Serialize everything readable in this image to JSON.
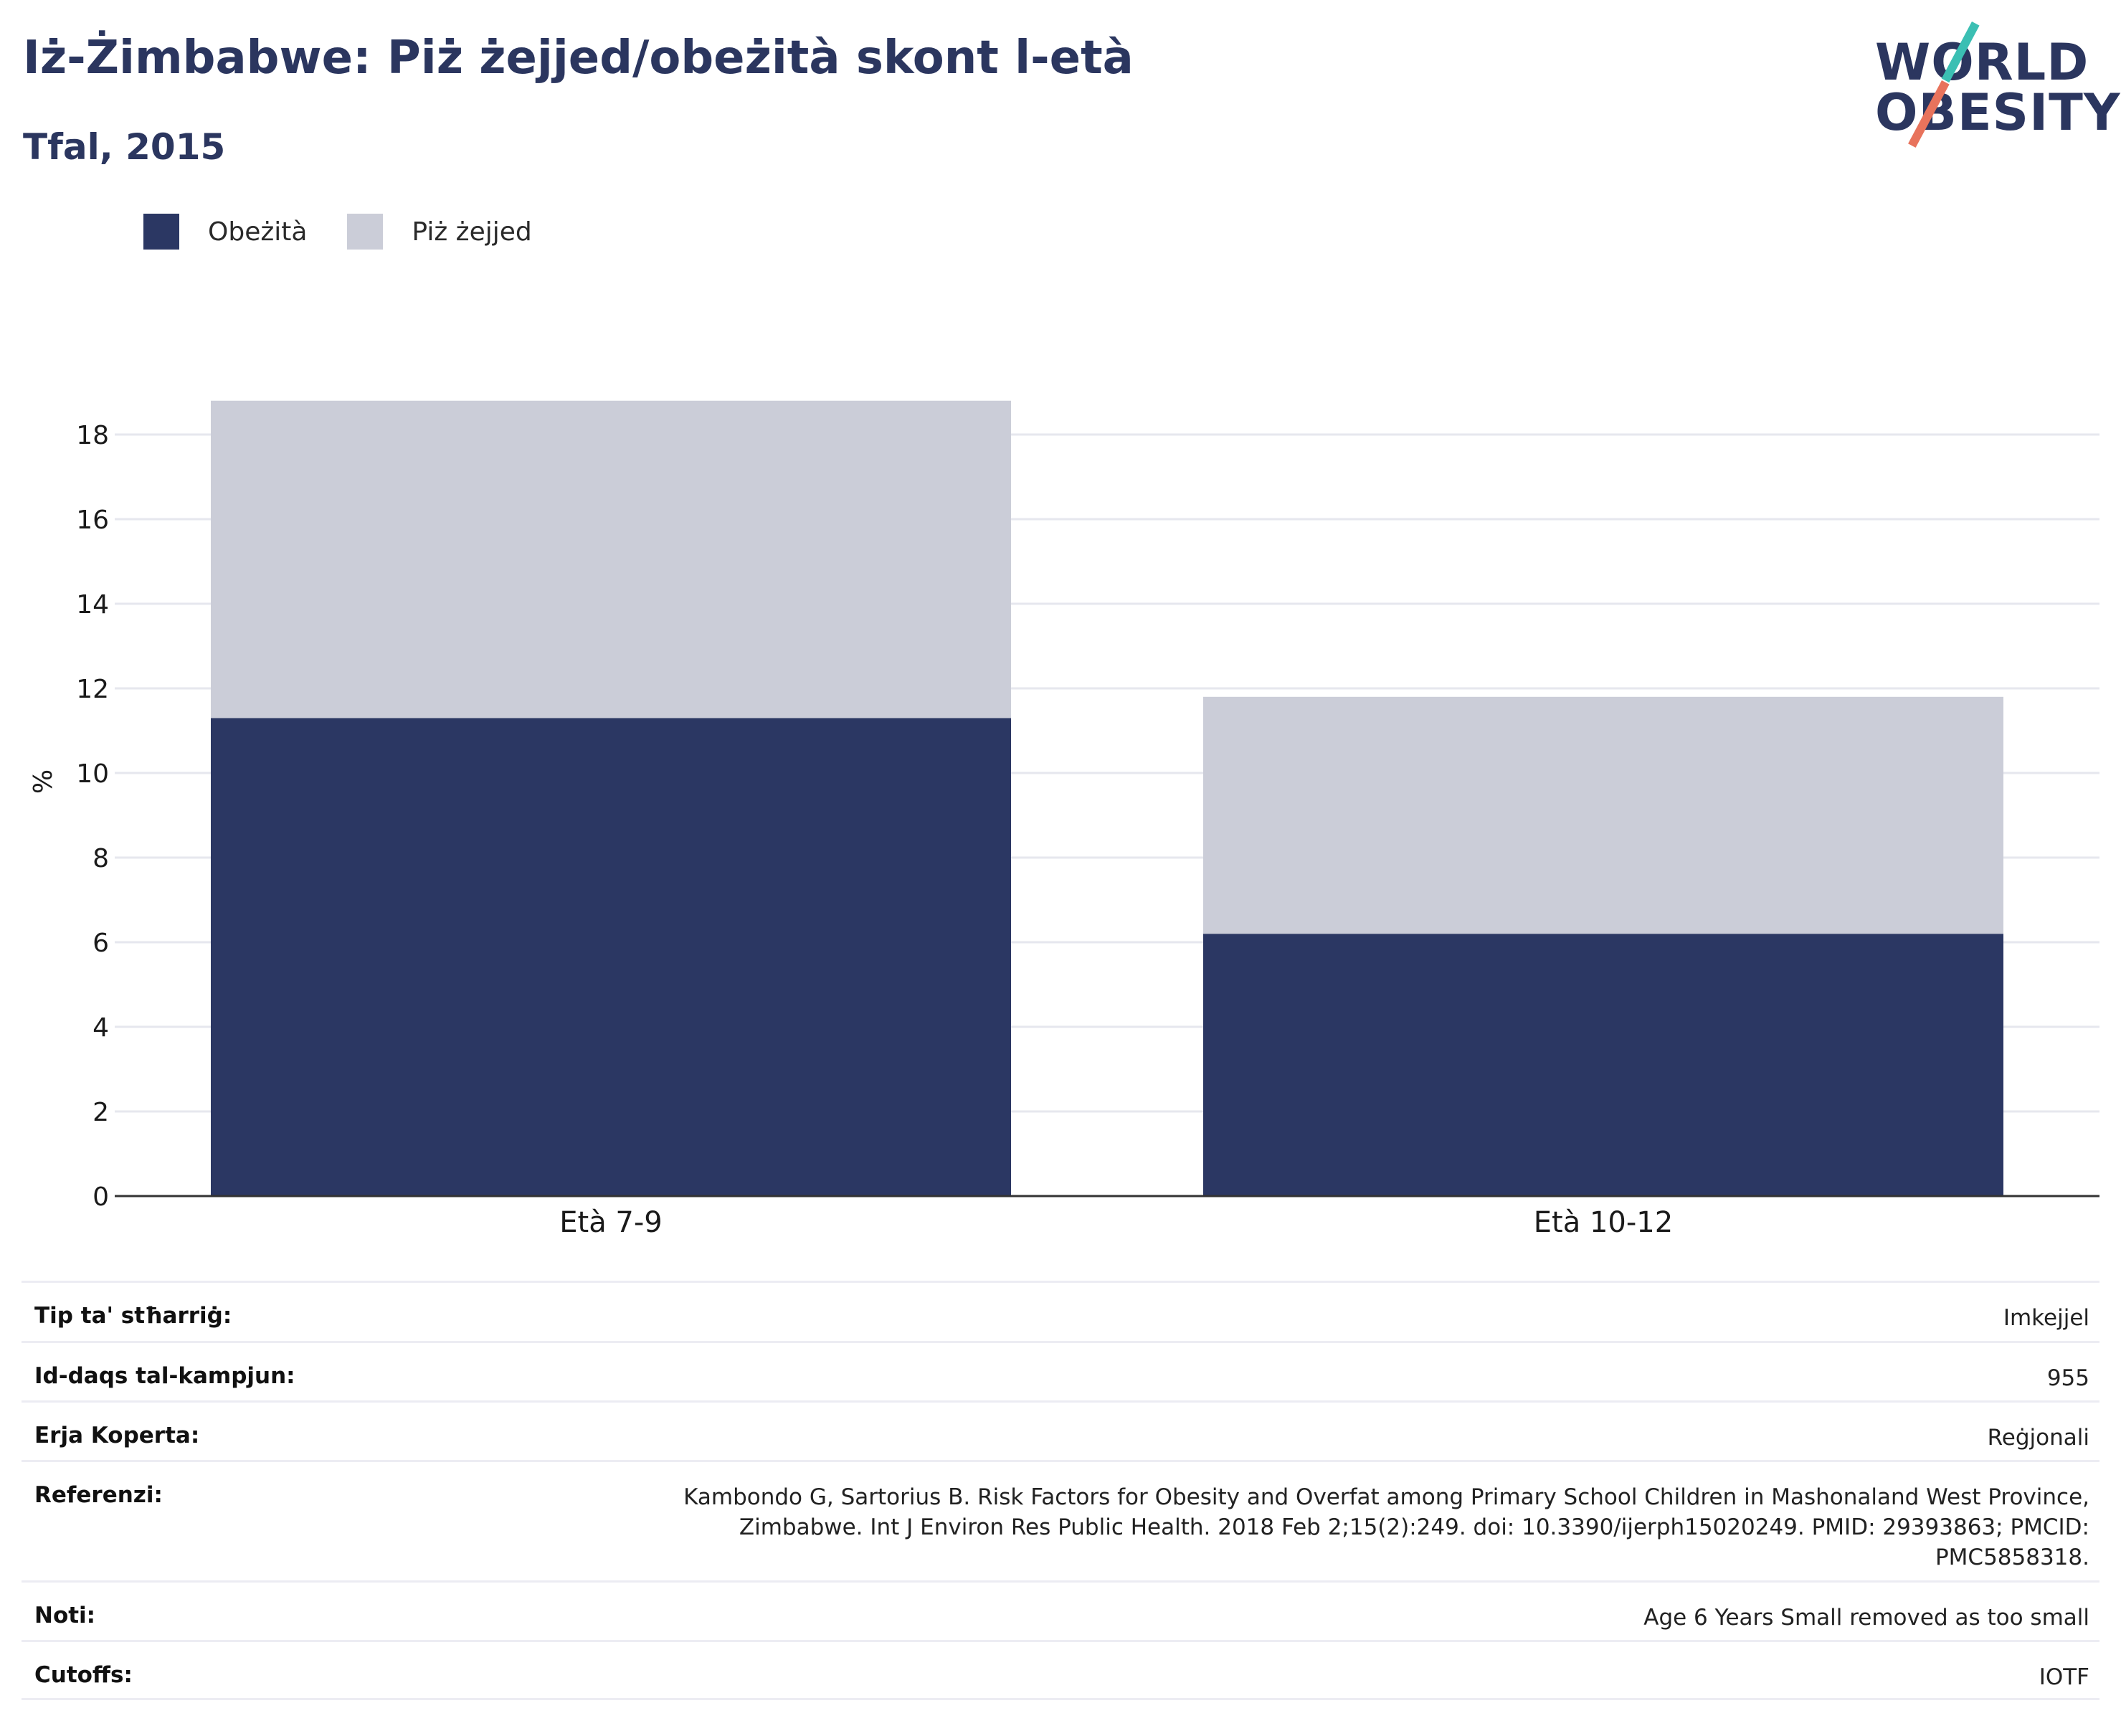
{
  "header": {
    "title": "Iż-Żimbabwe: Piż żejjed/obeżità skont l-età",
    "subtitle": "Tfal, 2015"
  },
  "logo": {
    "line1": "WORLD",
    "line2": "OBESITY",
    "accent1": "#3bbfb3",
    "accent2": "#e8735c"
  },
  "legend": [
    {
      "label": "Obeżità",
      "color": "#2b3763"
    },
    {
      "label": "Piż żejjed",
      "color": "#cbcdd8"
    }
  ],
  "chart_data": {
    "type": "bar",
    "stacked": true,
    "categories": [
      "Età 7-9",
      "Età 10-12"
    ],
    "series": [
      {
        "name": "Obeżità",
        "color": "#2b3763",
        "values": [
          11.3,
          6.2
        ]
      },
      {
        "name": "Piż żejjed",
        "color": "#cbcdd8",
        "values": [
          7.5,
          5.6
        ]
      }
    ],
    "ylabel": "%",
    "ylim": [
      0,
      19
    ],
    "yticks": [
      0,
      2,
      4,
      6,
      8,
      10,
      12,
      14,
      16,
      18
    ],
    "grid": true
  },
  "info": [
    {
      "label": "Tip ta' stħarriġ:",
      "value": "Imkejjel"
    },
    {
      "label": "Id-daqs tal-kampjun:",
      "value": "955"
    },
    {
      "label": "Erja Koperta:",
      "value": "Reġjonali"
    },
    {
      "label": "Referenzi:",
      "value": "Kambondo G, Sartorius B. Risk Factors for Obesity and Overfat among Primary School Children in Mashonaland West Province, Zimbabwe. Int J Environ Res Public Health. 2018 Feb 2;15(2):249. doi: 10.3390/ijerph15020249. PMID: 29393863; PMCID: PMC5858318."
    },
    {
      "label": "Noti:",
      "value": "Age 6 Years Small removed as too small"
    },
    {
      "label": "Cutoffs:",
      "value": "IOTF"
    }
  ]
}
